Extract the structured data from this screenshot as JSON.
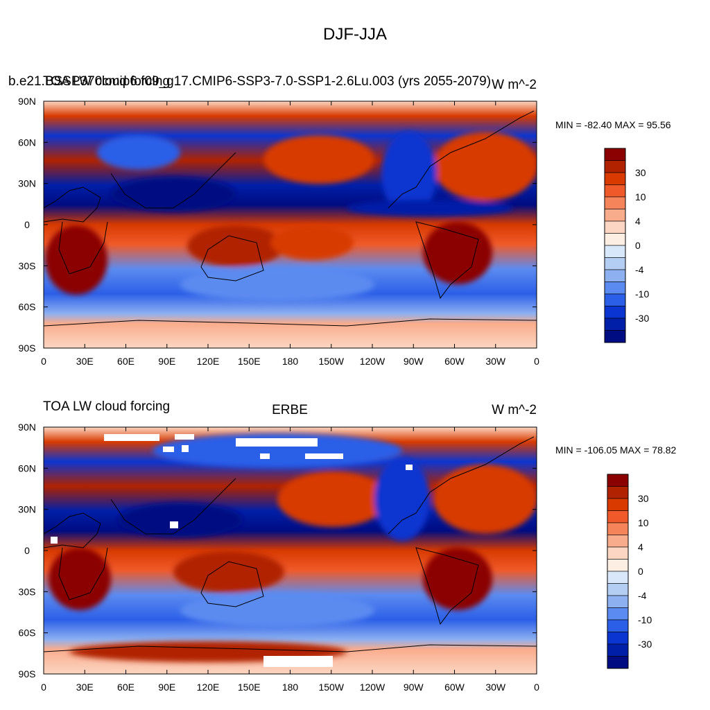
{
  "page_title": "DJF-JJA",
  "panels": [
    {
      "left_title": "b.e21.BSSP370cmip6.f09_g17.CMIP6-SSP3-7.0-SSP1-2.6Lu.003 (yrs 2055-2079)",
      "left_title_overlap": "TOA LW cloud forcing",
      "center_title": "",
      "right_title": "W m^-2",
      "min_max": "MIN = -82.40 MAX =  95.56"
    },
    {
      "left_title": "TOA LW cloud forcing",
      "center_title": "ERBE",
      "right_title": "W m^-2",
      "min_max": "MIN = -106.05 MAX =  78.82"
    }
  ],
  "colorbar": {
    "colors": [
      "#8b0000",
      "#b02200",
      "#d83a00",
      "#f05a2a",
      "#f5845a",
      "#f9ac8c",
      "#fcd6c2",
      "#fdeee4",
      "#d8e8fa",
      "#b4cdf3",
      "#8cb0f0",
      "#5b8bf0",
      "#2c5fe8",
      "#0b35d0",
      "#001fa8",
      "#000c82"
    ],
    "labels": [
      "30",
      "10",
      "4",
      "0",
      "-4",
      "-10",
      "-30"
    ]
  },
  "chart_data": [
    {
      "type": "heatmap",
      "title": "b.e21.BSSP370cmip6.f09_g17.CMIP6-SSP3-7.0-SSP1-2.6Lu.003 (yrs 2055-2079)",
      "variable": "TOA LW cloud forcing",
      "season": "DJF-JJA",
      "units": "W m^-2",
      "min": -82.4,
      "max": 95.56,
      "x_ticks": [
        "0",
        "30E",
        "60E",
        "90E",
        "120E",
        "150E",
        "180",
        "150W",
        "120W",
        "90W",
        "60W",
        "30W",
        "0"
      ],
      "y_ticks": [
        "90N",
        "60N",
        "30N",
        "0",
        "30S",
        "60S",
        "90S"
      ],
      "xlim": [
        0,
        360
      ],
      "ylim": [
        -90,
        90
      ],
      "contour_levels": [
        -30,
        -10,
        -4,
        0,
        4,
        10,
        30
      ]
    },
    {
      "type": "heatmap",
      "title": "ERBE",
      "variable": "TOA LW cloud forcing",
      "season": "DJF-JJA",
      "units": "W m^-2",
      "min": -106.05,
      "max": 78.82,
      "x_ticks": [
        "0",
        "30E",
        "60E",
        "90E",
        "120E",
        "150E",
        "180",
        "150W",
        "120W",
        "90W",
        "60W",
        "30W",
        "0"
      ],
      "y_ticks": [
        "90N",
        "60N",
        "30N",
        "0",
        "30S",
        "60S",
        "90S"
      ],
      "xlim": [
        0,
        360
      ],
      "ylim": [
        -90,
        90
      ],
      "contour_levels": [
        -30,
        -10,
        -4,
        0,
        4,
        10,
        30
      ]
    }
  ]
}
